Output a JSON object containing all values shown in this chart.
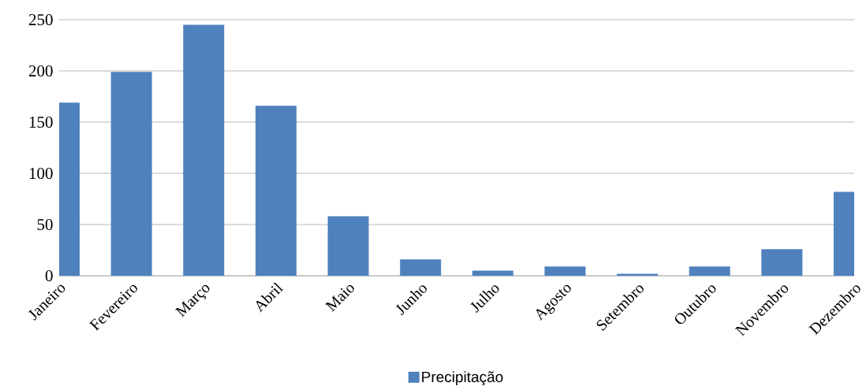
{
  "chart_data": {
    "type": "bar",
    "categories": [
      "Janeiro",
      "Fevereiro",
      "Março",
      "Abril",
      "Maio",
      "Junho",
      "Julho",
      "Agosto",
      "Setembro",
      "Outubro",
      "Novembro",
      "Dezembro"
    ],
    "series": [
      {
        "name": "Precipitação",
        "color": "#4f81bd",
        "values": [
          169,
          199,
          245,
          166,
          58,
          16,
          5,
          9,
          2,
          9,
          26,
          82
        ]
      }
    ],
    "ylim": [
      0,
      250
    ],
    "yticks": [
      0,
      50,
      100,
      150,
      200,
      250
    ],
    "grid": "y",
    "legend": "bottom"
  }
}
